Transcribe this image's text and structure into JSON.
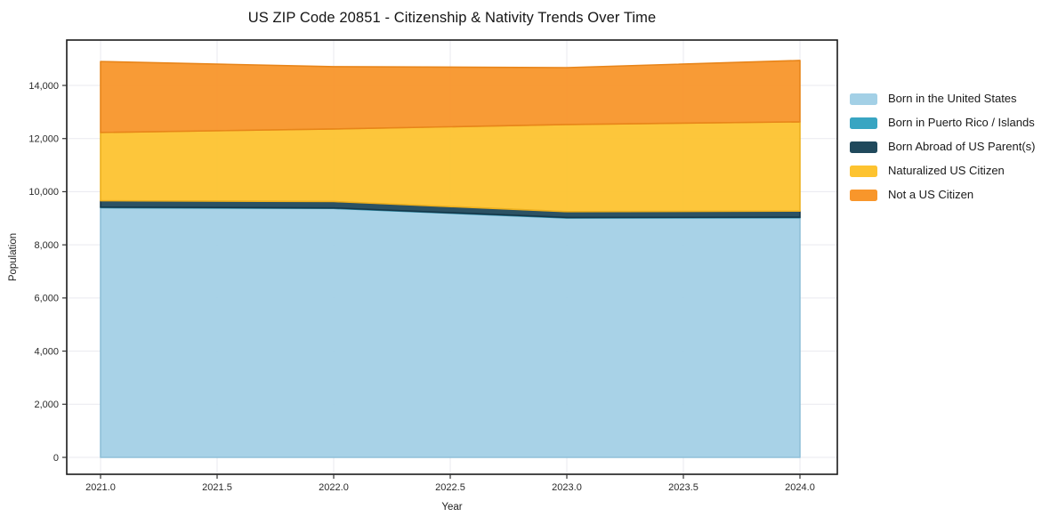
{
  "chart_data": {
    "type": "area",
    "stacked": true,
    "title": "US ZIP Code 20851 - Citizenship & Nativity Trends Over Time",
    "xlabel": "Year",
    "ylabel": "Population",
    "grid": true,
    "legend_position": "right-outside",
    "x": [
      2021,
      2022,
      2023,
      2024
    ],
    "x_ticks": {
      "values": [
        2021.0,
        2021.5,
        2022.0,
        2022.5,
        2023.0,
        2023.5,
        2024.0
      ],
      "labels": [
        "2021.0",
        "2021.5",
        "2022.0",
        "2022.5",
        "2023.0",
        "2023.5",
        "2024.0"
      ]
    },
    "y_ticks": {
      "values": [
        0,
        2000,
        4000,
        6000,
        8000,
        10000,
        12000,
        14000
      ],
      "labels": [
        "0",
        "2,000",
        "4,000",
        "6,000",
        "8,000",
        "10,000",
        "12,000",
        "14,000"
      ]
    },
    "xlim": [
      2020.85,
      2024.16
    ],
    "ylim": [
      -700,
      15700
    ],
    "series": [
      {
        "name": "Born in the United States",
        "fill": "#a3d0e6",
        "edge": "#8fc0d8",
        "values": [
          9400,
          9370,
          9010,
          9020
        ]
      },
      {
        "name": "Born in Puerto Rico / Islands",
        "fill": "#38a5c2",
        "edge": "#2d8ba6",
        "values": [
          20,
          20,
          20,
          20
        ]
      },
      {
        "name": "Born Abroad of US Parent(s)",
        "fill": "#20495c",
        "edge": "#16384a",
        "values": [
          240,
          240,
          220,
          230
        ]
      },
      {
        "name": "Naturalized US Citizen",
        "fill": "#fdc330",
        "edge": "#edb01e",
        "values": [
          2570,
          2730,
          3280,
          3360
        ]
      },
      {
        "name": "Not a US Citizen",
        "fill": "#f8962b",
        "edge": "#e8851a",
        "values": [
          2670,
          2345,
          2140,
          2310
        ]
      }
    ],
    "colors": {
      "spine": "#1a1a1a",
      "gridline": "#e9e9ef",
      "tick": "#333333",
      "tick_label": "#2a2a2a"
    }
  }
}
